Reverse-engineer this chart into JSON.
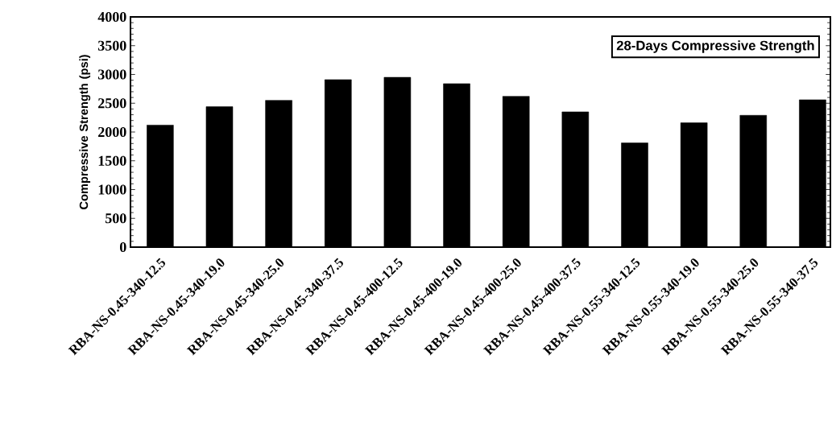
{
  "chart_data": {
    "type": "bar",
    "title": "28-Days Compressive Strength",
    "ylabel": "Compressive Strength (psi)",
    "categories": [
      "RBA-NS-0.45-340-12.5",
      "RBA-NS-0.45-340-19.0",
      "RBA-NS-0.45-340-25.0",
      "RBA-NS-0.45-340-37.5",
      "RBA-NS-0.45-400-12.5",
      "RBA-NS-0.45-400-19.0",
      "RBA-NS-0.45-400-25.0",
      "RBA-NS-0.45-400-37.5",
      "RBA-NS-0.55-340-12.5",
      "RBA-NS-0.55-340-19.0",
      "RBA-NS-0.55-340-25.0",
      "RBA-NS-0.55-340-37.5"
    ],
    "values": [
      2120,
      2440,
      2550,
      2910,
      2950,
      2840,
      2620,
      2350,
      1810,
      2160,
      2290,
      2560
    ],
    "color": "#000000",
    "ylim": [
      0,
      4000
    ],
    "yticks": [
      0,
      500,
      1000,
      1500,
      2000,
      2500,
      3000,
      3500,
      4000
    ]
  }
}
